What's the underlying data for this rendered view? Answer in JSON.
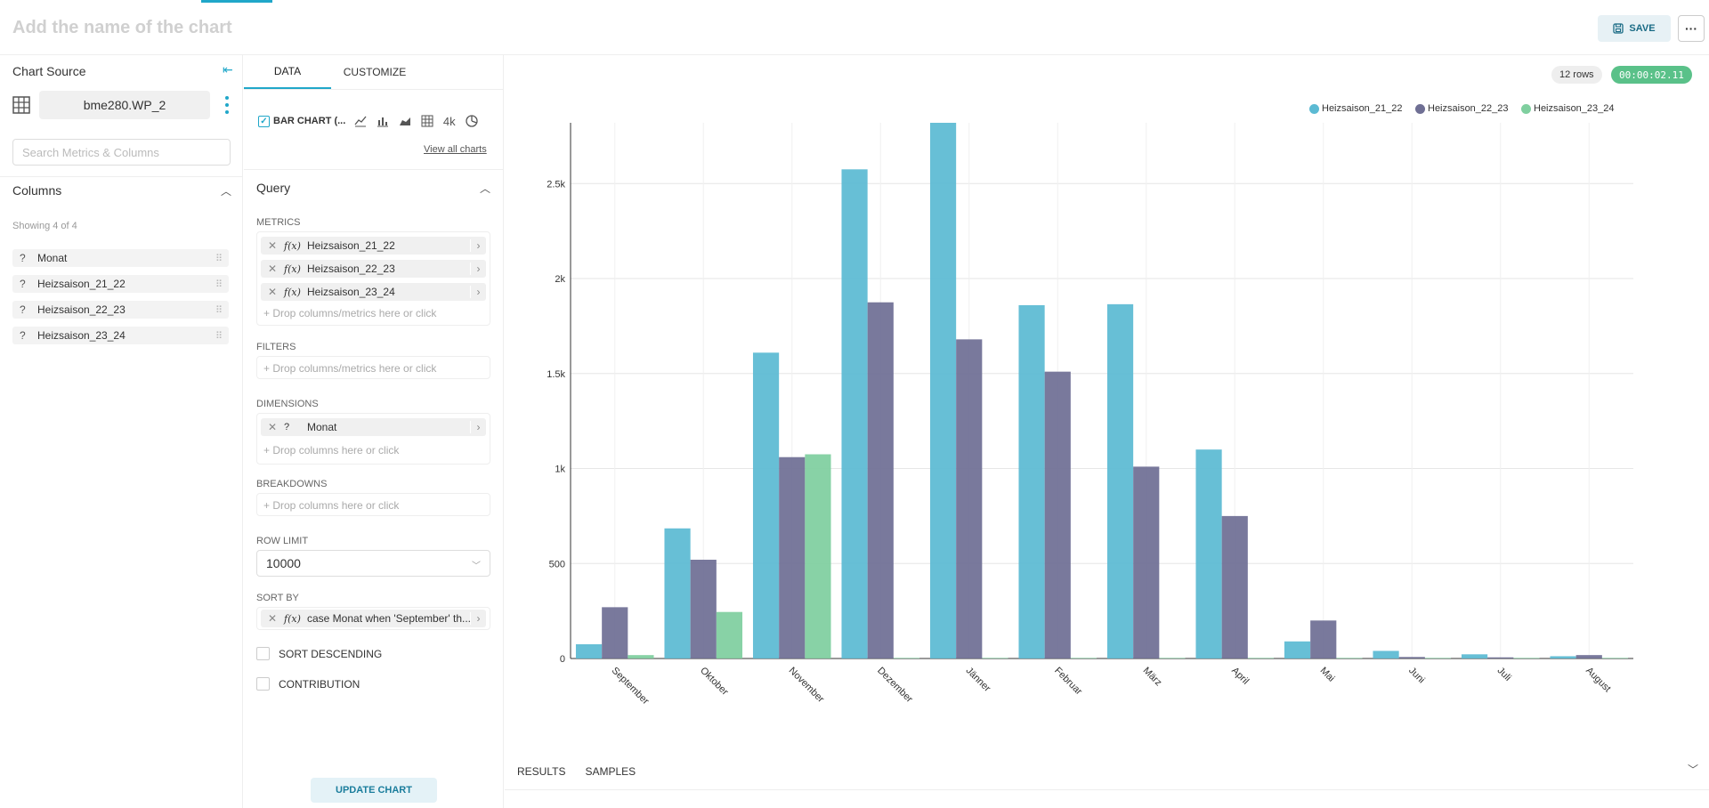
{
  "header": {
    "chart_name_placeholder": "Add the name of the chart",
    "save_label": "SAVE",
    "more_label": "···"
  },
  "left": {
    "title": "Chart Source",
    "datasource": "bme280.WP_2",
    "search_placeholder": "Search Metrics & Columns",
    "columns_title": "Columns",
    "showing": "Showing 4 of 4",
    "columns": [
      {
        "type": "?",
        "name": "Monat"
      },
      {
        "type": "?",
        "name": "Heizsaison_21_22"
      },
      {
        "type": "?",
        "name": "Heizsaison_22_23"
      },
      {
        "type": "?",
        "name": "Heizsaison_23_24"
      }
    ]
  },
  "mid": {
    "tabs": [
      "DATA",
      "CUSTOMIZE"
    ],
    "viz_name": "BAR CHART (...",
    "viz_4k": "4k",
    "view_all": "View all charts",
    "query_title": "Query",
    "metrics_label": "METRICS",
    "metrics": [
      "Heizsaison_21_22",
      "Heizsaison_22_23",
      "Heizsaison_23_24"
    ],
    "fx": "f(x)",
    "drop_metrics": "Drop columns/metrics here or click",
    "filters_label": "FILTERS",
    "dimensions_label": "DIMENSIONS",
    "dimension": "Monat",
    "drop_columns": "Drop columns here or click",
    "breakdowns_label": "BREAKDOWNS",
    "row_limit_label": "ROW LIMIT",
    "row_limit": "10000",
    "sort_by_label": "SORT BY",
    "sort_by": "case Monat when 'September' th...",
    "sort_desc": "SORT DESCENDING",
    "contribution": "CONTRIBUTION",
    "update": "UPDATE CHART"
  },
  "right": {
    "rows": "12 rows",
    "time": "00:00:02.11",
    "results_tabs": [
      "RESULTS",
      "SAMPLES"
    ]
  },
  "colors": {
    "accent": "#20a7c9",
    "series1": "#5bbad3",
    "series2": "#6f6f94",
    "series3": "#7fcf9f"
  },
  "chart_data": {
    "type": "bar",
    "categories": [
      "September",
      "Oktober",
      "November",
      "Dezember",
      "Jänner",
      "Februar",
      "März",
      "April",
      "Mai",
      "Juni",
      "Juli",
      "August"
    ],
    "series": [
      {
        "name": "Heizsaison_21_22",
        "color": "#5bbad3",
        "values": [
          75,
          685,
          1610,
          2575,
          2820,
          1860,
          1865,
          1100,
          90,
          40,
          22,
          12
        ]
      },
      {
        "name": "Heizsaison_22_23",
        "color": "#6f6f94",
        "values": [
          270,
          520,
          1060,
          1875,
          1680,
          1510,
          1010,
          750,
          200,
          8,
          6,
          18
        ]
      },
      {
        "name": "Heizsaison_23_24",
        "color": "#7fcf9f",
        "values": [
          18,
          245,
          1075,
          3,
          3,
          3,
          3,
          3,
          3,
          3,
          3,
          3
        ]
      }
    ],
    "yticks": [
      0,
      500,
      1000,
      1500,
      2000,
      2500
    ],
    "ytick_labels": [
      "0",
      "500",
      "1k",
      "1.5k",
      "2k",
      "2.5k"
    ],
    "ylim": [
      0,
      2820
    ],
    "grid": true,
    "legend": "top-right"
  }
}
